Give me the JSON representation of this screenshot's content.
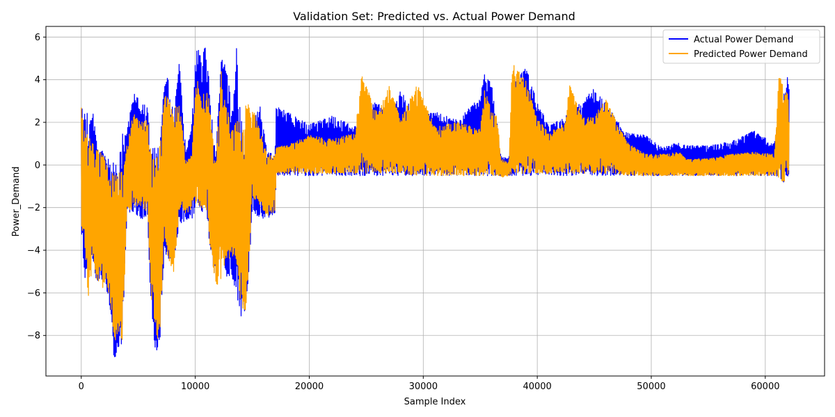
{
  "chart_data": {
    "type": "line",
    "title": "Validation Set: Predicted vs. Actual Power Demand",
    "xlabel": "Sample Index",
    "ylabel": "Power_Demand",
    "xlim": [
      -3100,
      65200
    ],
    "ylim": [
      -9.9,
      6.5
    ],
    "xticks": [
      0,
      10000,
      20000,
      30000,
      40000,
      50000,
      60000
    ],
    "yticks": [
      -8,
      -6,
      -4,
      -2,
      0,
      2,
      4,
      6
    ],
    "xtick_labels": [
      "0",
      "10000",
      "20000",
      "30000",
      "40000",
      "50000",
      "60000"
    ],
    "ytick_labels": [
      "−8",
      "−6",
      "−4",
      "−2",
      "0",
      "2",
      "4",
      "6"
    ],
    "grid": true,
    "legend_position": "top-right",
    "series": [
      {
        "name": "Actual Power Demand",
        "color": "#0000ff",
        "envelope": {
          "x": [
            0,
            300,
            600,
            1000,
            1400,
            1800,
            2200,
            2600,
            2900,
            3200,
            3600,
            4000,
            4600,
            5200,
            5800,
            6200,
            6500,
            6900,
            7300,
            7700,
            8100,
            8600,
            9200,
            9700,
            10100,
            10600,
            11000,
            11400,
            11800,
            12300,
            12700,
            13200,
            13600,
            14000,
            14500,
            15000,
            15700,
            16300,
            17000,
            17100,
            18000,
            20000,
            22000,
            24000,
            26000,
            27000,
            28000,
            29500,
            31000,
            33000,
            35000,
            35400,
            36000,
            36500,
            36800,
            37500,
            38000,
            39000,
            40000,
            41000,
            42500,
            44000,
            45000,
            46000,
            47000,
            48000,
            49500,
            51000,
            52500,
            53000,
            55000,
            57000,
            59000,
            60800,
            61200,
            61600,
            62000,
            62100
          ],
          "upper": [
            2.7,
            2.4,
            2.7,
            2.6,
            0.9,
            0.7,
            0.4,
            0.1,
            0.1,
            0.1,
            1.7,
            1.6,
            3.4,
            3.0,
            2.7,
            0.8,
            0.9,
            0.9,
            4.2,
            4.1,
            2.3,
            4.8,
            0.6,
            2.0,
            5.8,
            5.5,
            5.7,
            2.4,
            0.8,
            5.0,
            4.8,
            2.7,
            5.7,
            2.2,
            1.2,
            2.0,
            2.8,
            0.6,
            0.5,
            2.8,
            2.5,
            1.9,
            2.3,
            1.8,
            3.1,
            1.9,
            3.5,
            2.2,
            2.5,
            2.1,
            3.2,
            4.4,
            3.8,
            1.9,
            0.4,
            0.3,
            4.0,
            4.6,
            3.0,
            1.8,
            2.3,
            3.0,
            3.6,
            2.9,
            2.1,
            1.5,
            1.4,
            0.8,
            1.1,
            0.9,
            0.9,
            1.1,
            1.6,
            1.0,
            2.5,
            3.6,
            4.3,
            3.7
          ],
          "lower": [
            -3.0,
            -5.4,
            -5.1,
            -4.5,
            -5.7,
            -5.4,
            -5.6,
            -8.1,
            -9.2,
            -8.6,
            -8.4,
            -2.4,
            -2.2,
            -2.5,
            -2.6,
            -7.7,
            -8.8,
            -8.6,
            -3.9,
            -4.8,
            -4.5,
            -2.9,
            -2.7,
            -2.6,
            -2.0,
            -2.2,
            -2.3,
            -4.8,
            -5.2,
            -3.5,
            -5.5,
            -5.2,
            -6.0,
            -7.1,
            -6.9,
            -2.2,
            -2.5,
            -2.5,
            -2.4,
            -0.5,
            -0.5,
            -0.5,
            -0.5,
            -0.5,
            -0.5,
            -0.5,
            -0.5,
            -0.5,
            -0.5,
            -0.5,
            -0.5,
            -0.5,
            -0.5,
            -0.5,
            -0.5,
            -0.5,
            -0.5,
            -0.5,
            -0.5,
            -0.5,
            -0.5,
            -0.5,
            -0.5,
            -0.5,
            -0.5,
            -0.5,
            -0.5,
            -0.5,
            -0.5,
            -0.5,
            -0.5,
            -0.5,
            -0.5,
            -0.5,
            -0.6,
            -0.9,
            -0.5,
            -0.5
          ]
        }
      },
      {
        "name": "Predicted Power Demand",
        "color": "#ffa500",
        "envelope": {
          "x": [
            0,
            300,
            600,
            1000,
            1400,
            1800,
            2200,
            2600,
            2900,
            3200,
            3600,
            4000,
            4600,
            5200,
            5800,
            6200,
            6500,
            6900,
            7300,
            7700,
            8100,
            8600,
            9200,
            9700,
            10100,
            10600,
            11000,
            11400,
            11800,
            12300,
            12700,
            13200,
            13600,
            14000,
            14500,
            15000,
            15700,
            16300,
            17000,
            17100,
            18000,
            20000,
            22000,
            24000,
            24600,
            26000,
            27000,
            28000,
            29500,
            31000,
            33000,
            35000,
            35400,
            36000,
            36500,
            36800,
            37500,
            37800,
            39000,
            40000,
            41000,
            42500,
            42800,
            44000,
            45000,
            46000,
            47000,
            48000,
            49500,
            51000,
            52500,
            53000,
            55000,
            57000,
            59000,
            60800,
            61200,
            61600,
            62000,
            62100
          ],
          "upper": [
            2.7,
            1.6,
            1.4,
            1.0,
            0.8,
            0.5,
            0.2,
            -0.2,
            -0.2,
            -0.3,
            -0.3,
            0.9,
            2.5,
            2.0,
            2.1,
            0.5,
            0.2,
            0.9,
            3.4,
            3.0,
            2.6,
            3.0,
            0.2,
            0.5,
            4.3,
            3.0,
            4.0,
            2.0,
            0.5,
            4.6,
            3.0,
            1.5,
            3.0,
            1.4,
            3.0,
            2.7,
            1.6,
            0.5,
            0.4,
            0.9,
            0.9,
            1.4,
            1.2,
            1.5,
            4.2,
            2.4,
            3.7,
            2.2,
            3.8,
            1.8,
            2.0,
            1.7,
            3.7,
            2.5,
            2.3,
            0.3,
            0.1,
            4.8,
            4.0,
            2.2,
            1.5,
            2.0,
            3.8,
            2.2,
            2.3,
            3.1,
            2.0,
            1.0,
            0.5,
            0.5,
            0.6,
            0.3,
            0.3,
            0.5,
            0.6,
            0.5,
            4.3,
            3.6,
            3.5,
            2.0
          ],
          "lower": [
            -2.8,
            -3.6,
            -6.4,
            -4.6,
            -5.7,
            -5.9,
            -5.3,
            -6.7,
            -8.2,
            -8.4,
            -8.4,
            -2.3,
            -2.0,
            -1.9,
            -2.2,
            -6.7,
            -8.1,
            -8.3,
            -3.2,
            -4.7,
            -5.1,
            -2.3,
            -2.3,
            -2.1,
            -1.8,
            -2.0,
            -2.3,
            -4.4,
            -5.7,
            -5.4,
            -4.5,
            -4.3,
            -4.5,
            -6.7,
            -7.0,
            -1.5,
            -2.0,
            -2.4,
            -2.2,
            -0.4,
            -0.4,
            -0.4,
            -0.4,
            -0.4,
            -0.4,
            -0.4,
            -0.4,
            -0.4,
            -0.5,
            -0.5,
            -0.5,
            -0.5,
            -0.5,
            -0.5,
            -0.5,
            -0.6,
            -0.5,
            -0.4,
            -0.4,
            -0.4,
            -0.4,
            -0.4,
            -0.4,
            -0.4,
            -0.4,
            -0.4,
            -0.4,
            -0.5,
            -0.5,
            -0.5,
            -0.5,
            -0.5,
            -0.5,
            -0.5,
            -0.5,
            -0.5,
            -0.6,
            -0.9,
            -0.4,
            -0.4
          ]
        }
      }
    ]
  }
}
